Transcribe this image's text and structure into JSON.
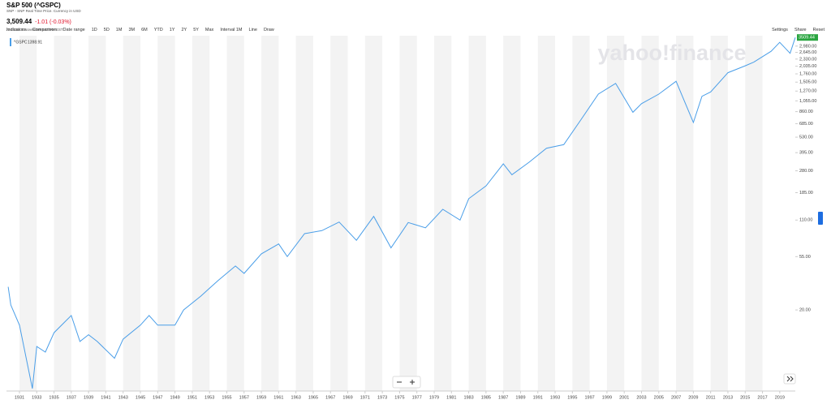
{
  "header": {
    "title": "S&P 500 (^GSPC)",
    "subtitle": "SNP - SNP Real Time Price. Currency in USD",
    "price": "3,509.44",
    "change": "-1.01 (-0.03%)",
    "time": "At close: 6 November 5:07PM EST"
  },
  "toolbar": {
    "left": [
      "Indicators",
      "Comparison",
      "Date range",
      "1D",
      "5D",
      "1M",
      "3M",
      "6M",
      "YTD",
      "1Y",
      "2Y",
      "5Y",
      "Max",
      "Interval 1M",
      "Line",
      "Draw"
    ],
    "right": [
      "Settings",
      "Share",
      "Reset"
    ]
  },
  "chart_data": {
    "type": "line",
    "watermark": "yahoo!finance",
    "legend_value": "1398.91",
    "last_value": 3509.44,
    "log_scale": true,
    "series": [
      {
        "name": "^GSPC",
        "color": "#4a9ee8",
        "values": [
          31,
          22,
          15,
          4.5,
          10,
          9,
          13,
          18,
          11,
          12.5,
          11,
          8,
          11.5,
          15,
          18,
          15,
          15,
          20,
          26,
          35,
          46,
          40,
          58,
          70,
          55,
          85,
          90,
          106,
          75,
          118,
          65,
          105,
          95,
          135,
          110,
          165,
          210,
          320,
          260,
          330,
          430,
          460,
          740,
          1200,
          1470,
          850,
          1000,
          1200,
          1530,
          700,
          1150,
          1250,
          1800,
          2050,
          2200,
          2700,
          3200,
          2600,
          3509.44
        ]
      }
    ],
    "x": [
      1929.7,
      1930,
      1931,
      1932.5,
      1933,
      1934,
      1935,
      1937,
      1938,
      1939,
      1940,
      1942,
      1943,
      1945,
      1946,
      1947,
      1949,
      1950,
      1952,
      1954,
      1956,
      1957,
      1959,
      1961,
      1962,
      1964,
      1966,
      1968,
      1970,
      1972,
      1974,
      1976,
      1978,
      1980,
      1982,
      1983,
      1985,
      1987,
      1988,
      1990,
      1992,
      1994,
      1996,
      1998,
      2000,
      2002,
      2003,
      2005,
      2007,
      2009,
      2010,
      2011,
      2013,
      2015,
      2016,
      2018,
      2019,
      2020.2,
      2020.8
    ],
    "xlim": [
      1929.5,
      2020.8
    ],
    "xticks": [
      1931,
      1933,
      1935,
      1937,
      1939,
      1941,
      1943,
      1945,
      1947,
      1949,
      1951,
      1953,
      1955,
      1957,
      1959,
      1961,
      1963,
      1965,
      1967,
      1969,
      1971,
      1973,
      1975,
      1977,
      1979,
      1981,
      1983,
      1985,
      1987,
      1989,
      1991,
      1993,
      1995,
      1997,
      1999,
      2001,
      2003,
      2005,
      2007,
      2009,
      2011,
      2013,
      2015,
      2017,
      2019
    ],
    "ylim": [
      4.3,
      3630
    ],
    "yticks": [
      {
        "value": 2980,
        "label": "2,980.00"
      },
      {
        "value": 2645,
        "label": "2,645.00"
      },
      {
        "value": 2330,
        "label": "2,330.00"
      },
      {
        "value": 2035,
        "label": "2,035.00"
      },
      {
        "value": 1760,
        "label": "1,760.00"
      },
      {
        "value": 1505,
        "label": "1,505.00"
      },
      {
        "value": 1270,
        "label": "1,270.00"
      },
      {
        "value": 1055,
        "label": "1,055.00"
      },
      {
        "value": 860,
        "label": "860.00"
      },
      {
        "value": 685,
        "label": "685.00"
      },
      {
        "value": 530,
        "label": "530.00"
      },
      {
        "value": 395,
        "label": "395.00"
      },
      {
        "value": 280,
        "label": "280.00"
      },
      {
        "value": 185,
        "label": "185.00"
      },
      {
        "value": 110,
        "label": "110.00"
      },
      {
        "value": 55,
        "label": "55.00"
      },
      {
        "value": 20,
        "label": "20.00"
      }
    ]
  }
}
